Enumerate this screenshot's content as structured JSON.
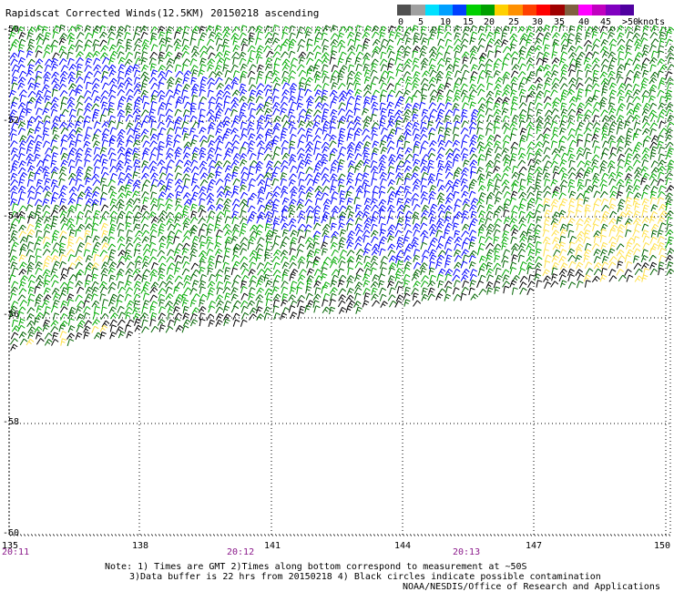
{
  "title": "Rapidscat Corrected Winds(12.5KM) 20150218 ascending",
  "colorbar": {
    "segments": [
      "#505050",
      "#a0a0a0",
      "#00e0ff",
      "#00a0ff",
      "#0040ff",
      "#00d000",
      "#00a000",
      "#ffd000",
      "#ff9000",
      "#ff4000",
      "#ff0000",
      "#a00000",
      "#806040",
      "#ff00ff",
      "#c000c0",
      "#8000c0",
      "#5000a0"
    ],
    "labels": [
      "0",
      "5",
      "10",
      "15",
      "20",
      "25",
      "30",
      "35",
      "40",
      "45",
      ">50"
    ],
    "unit": "knots"
  },
  "map": {
    "lat_labels": [
      "-50",
      "-52",
      "-54",
      "-56",
      "-58",
      "-60"
    ],
    "lon_labels": [
      "135",
      "138",
      "141",
      "144",
      "147",
      "150"
    ],
    "time_labels": [
      "20:11",
      "20:12",
      "20:13"
    ],
    "wind_colors": {
      "blue": "#0000ff",
      "green": "#00aa00",
      "dark_green": "#006400",
      "yellow": "#ffe14a",
      "black": "#000000"
    }
  },
  "notes": {
    "line1": "Note: 1) Times are GMT 2)Times along bottom correspond to measurement at ~50S",
    "line2": "3)Data buffer is 22 hrs from 20150218 4) Black circles indicate possible contamination",
    "line3": "NOAA/NESDIS/Office of Research and Applications"
  }
}
